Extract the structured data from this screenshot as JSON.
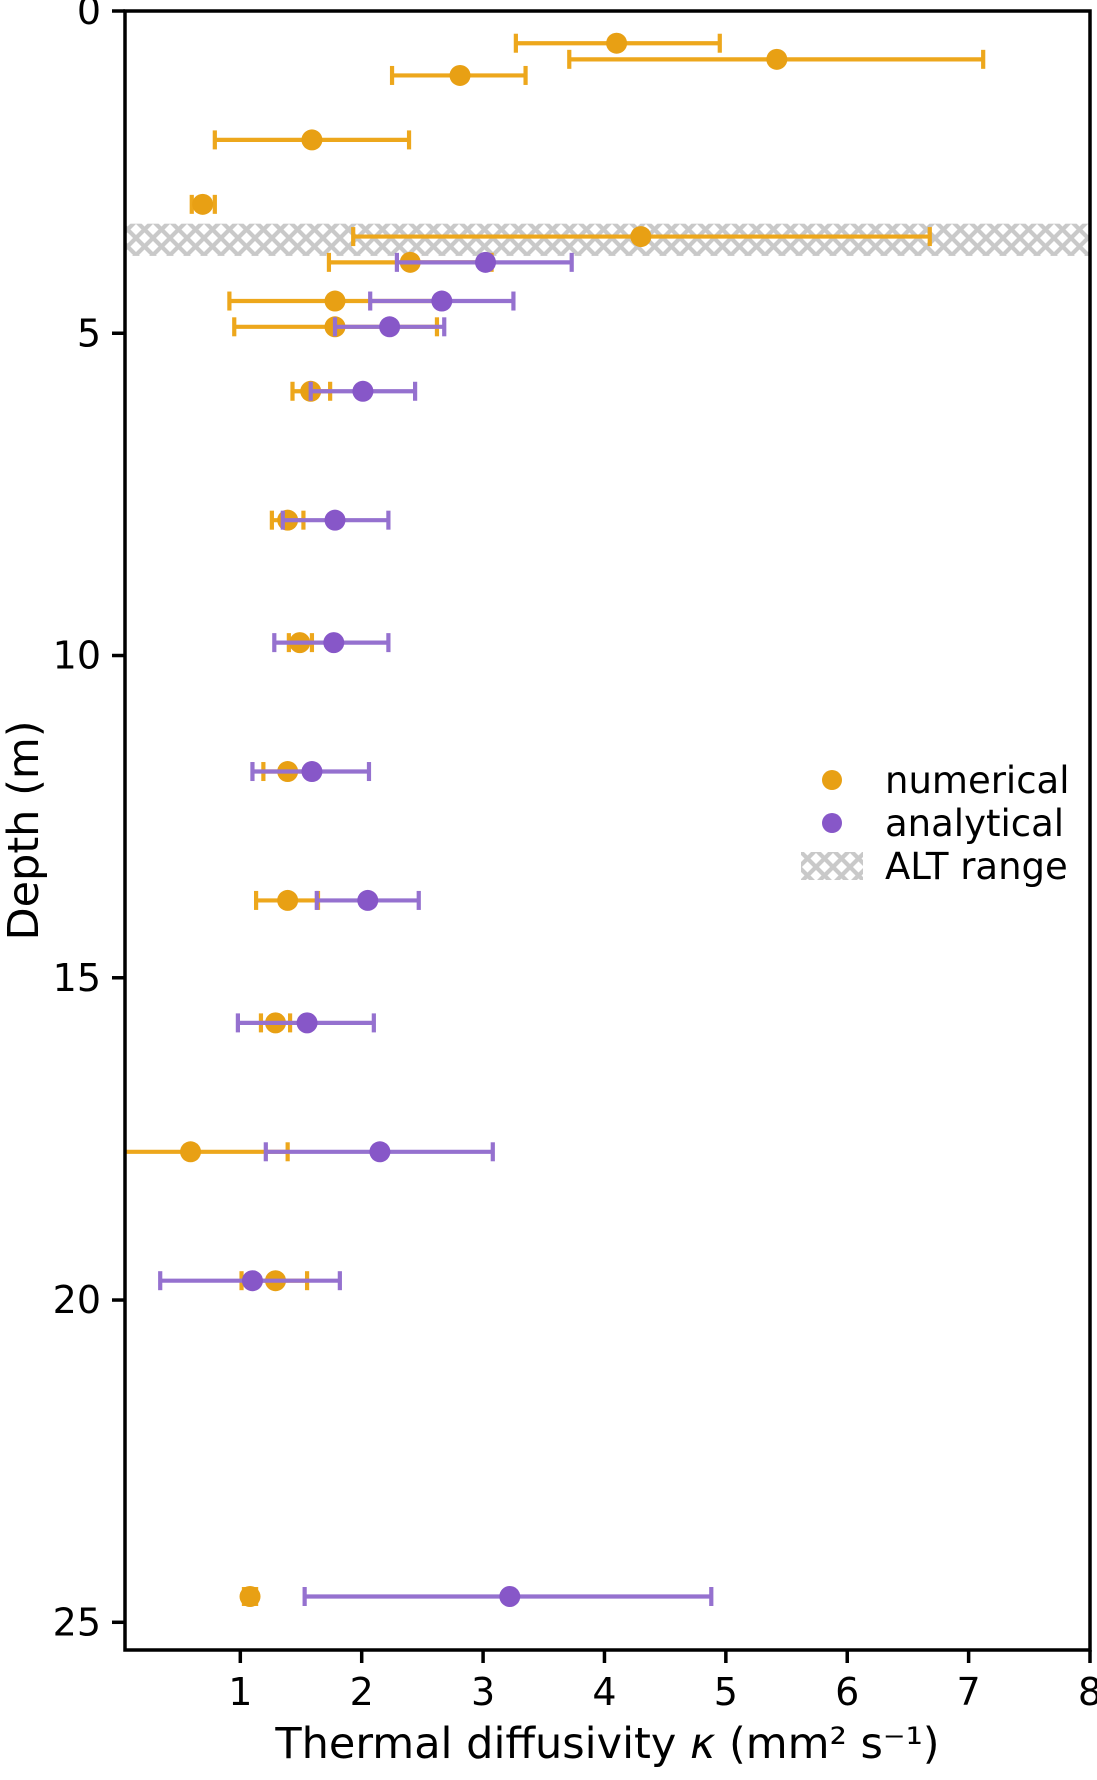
{
  "chart_data": {
    "type": "scatter",
    "title": "",
    "xlabel": "Thermal diffusivity κ (mm² s⁻¹)",
    "ylabel": "Depth (m)",
    "xlim": [
      0.05,
      8.0
    ],
    "ylim": [
      0,
      25.43
    ],
    "y_inverted": true,
    "grid": false,
    "x_ticks": [
      1,
      2,
      3,
      4,
      5,
      6,
      7,
      8
    ],
    "y_ticks": [
      0,
      5,
      10,
      15,
      20,
      25
    ],
    "alt_band": {
      "label": "ALT range",
      "depth_range": [
        3.3,
        3.8
      ],
      "hatch_color": "#c9c9c9",
      "style": "cross-hatch",
      "spans_full_width": true
    },
    "series": [
      {
        "name": "numerical",
        "color": "#e8a014",
        "bar_color": "#eda71c",
        "points": [
          {
            "depth": 0.5,
            "value": 4.1,
            "lo": 3.27,
            "hi": 4.95
          },
          {
            "depth": 0.75,
            "value": 5.42,
            "lo": 3.71,
            "hi": 7.12
          },
          {
            "depth": 1.0,
            "value": 2.81,
            "lo": 2.25,
            "hi": 3.35
          },
          {
            "depth": 2.0,
            "value": 1.59,
            "lo": 0.79,
            "hi": 2.39
          },
          {
            "depth": 3.0,
            "value": 0.69,
            "lo": 0.6,
            "hi": 0.79
          },
          {
            "depth": 3.5,
            "value": 4.3,
            "lo": 1.93,
            "hi": 6.68
          },
          {
            "depth": 3.9,
            "value": 2.4,
            "lo": 1.73,
            "hi": 3.07
          },
          {
            "depth": 4.5,
            "value": 1.78,
            "lo": 0.91,
            "hi": 2.65
          },
          {
            "depth": 4.9,
            "value": 1.78,
            "lo": 0.95,
            "hi": 2.62
          },
          {
            "depth": 5.9,
            "value": 1.58,
            "lo": 1.43,
            "hi": 1.74
          },
          {
            "depth": 7.9,
            "value": 1.39,
            "lo": 1.26,
            "hi": 1.52
          },
          {
            "depth": 9.8,
            "value": 1.49,
            "lo": 1.4,
            "hi": 1.59
          },
          {
            "depth": 11.8,
            "value": 1.39,
            "lo": 1.19,
            "hi": 1.59
          },
          {
            "depth": 13.8,
            "value": 1.39,
            "lo": 1.13,
            "hi": 1.64
          },
          {
            "depth": 15.7,
            "value": 1.29,
            "lo": 1.17,
            "hi": 1.41
          },
          {
            "depth": 17.7,
            "value": 0.59,
            "lo": -0.21,
            "hi": 1.39
          },
          {
            "depth": 19.7,
            "value": 1.29,
            "lo": 1.01,
            "hi": 1.55
          },
          {
            "depth": 24.6,
            "value": 1.08,
            "lo": 1.03,
            "hi": 1.13
          }
        ]
      },
      {
        "name": "analytical",
        "color": "#8757c8",
        "bar_color": "#9571cf",
        "points": [
          {
            "depth": 3.9,
            "value": 3.02,
            "lo": 2.29,
            "hi": 3.73
          },
          {
            "depth": 4.5,
            "value": 2.66,
            "lo": 2.07,
            "hi": 3.25
          },
          {
            "depth": 4.9,
            "value": 2.23,
            "lo": 1.78,
            "hi": 2.68
          },
          {
            "depth": 5.9,
            "value": 2.01,
            "lo": 1.58,
            "hi": 2.44
          },
          {
            "depth": 7.9,
            "value": 1.78,
            "lo": 1.35,
            "hi": 2.22
          },
          {
            "depth": 9.8,
            "value": 1.77,
            "lo": 1.28,
            "hi": 2.22
          },
          {
            "depth": 11.8,
            "value": 1.59,
            "lo": 1.1,
            "hi": 2.06
          },
          {
            "depth": 13.8,
            "value": 2.05,
            "lo": 1.63,
            "hi": 2.47
          },
          {
            "depth": 15.7,
            "value": 1.55,
            "lo": 0.98,
            "hi": 2.1
          },
          {
            "depth": 17.7,
            "value": 2.15,
            "lo": 1.21,
            "hi": 3.08
          },
          {
            "depth": 19.7,
            "value": 1.1,
            "lo": 0.34,
            "hi": 1.82
          },
          {
            "depth": 24.6,
            "value": 3.22,
            "lo": 1.53,
            "hi": 4.88
          }
        ]
      }
    ],
    "legend": {
      "position": "center-right",
      "frame": false,
      "entries": [
        {
          "marker": "dot",
          "series": "numerical",
          "label": "numerical"
        },
        {
          "marker": "dot",
          "series": "analytical",
          "label": "analytical"
        },
        {
          "marker": "hatch",
          "series": "alt_band",
          "label": "ALT range"
        }
      ]
    },
    "style": {
      "text_color": "#000000",
      "spine_color": "#000000",
      "background": "#ffffff"
    }
  }
}
